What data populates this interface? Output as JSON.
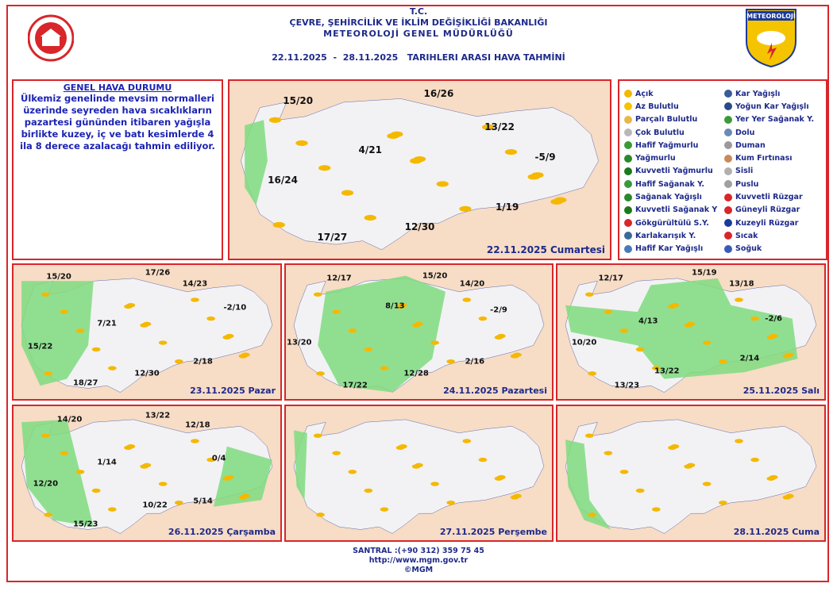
{
  "header": {
    "org": "T.C.",
    "ministry": "ÇEVRE, ŞEHİRCİLİK VE İKLİM DEĞİŞİKLİĞİ BAKANLIĞI",
    "directorate": "METEOROLOJİ GENEL MÜDÜRLÜĞÜ",
    "period": "22.11.2025  -  28.11.2025   TARIHLERI ARASI HAVA TAHMİNİ",
    "logo_right": "METEOROLOJİ"
  },
  "general": {
    "title": "GENEL HAVA DURUMU",
    "text": "Ülkemiz genelinde mevsim normalleri üzerinde seyreden hava sıcaklıkların pazartesi gününden itibaren yağışla birlikte kuzey, iç ve batı kesimlerde 4 ila 8 derece azalacağı tahmin ediliyor."
  },
  "legend": {
    "items": [
      "Açık",
      "Az Bulutlu",
      "Parçalı Bulutlu",
      "Çok Bulutlu",
      "Hafif Yağmurlu",
      "Yağmurlu",
      "Kuvvetli Yağmurlu",
      "Hafif Sağanak Y.",
      "Sağanak Yağışlı",
      "Kuvvetli Sağanak Y",
      "Gökgürültülü S.Y.",
      "Karlakarışık Y.",
      "Hafif Kar Yağışlı",
      "Kar Yağışlı",
      "Yoğun Kar Yağışlı",
      "Yer Yer Sağanak Y.",
      "Dolu",
      "Duman",
      "Kum Fırtınası",
      "Sisli",
      "Puslu",
      "Kuvvetli Rüzgar",
      "Güneyli Rüzgar",
      "Kuzeyli Rüzgar",
      "Sıcak",
      "Soğuk"
    ]
  },
  "maps": [
    {
      "date": "22.11.2025 Cumartesi",
      "temperatures": [
        "15/20",
        "16/26",
        "13/22",
        "4/21",
        "-5/9",
        "16/24",
        "1/19",
        "12/30",
        "17/27"
      ]
    },
    {
      "date": "23.11.2025 Pazar",
      "temperatures": [
        "15/20",
        "17/26",
        "14/23",
        "-2/10",
        "7/21",
        "15/22",
        "2/18",
        "12/30",
        "18/27"
      ]
    },
    {
      "date": "24.11.2025 Pazartesi",
      "temperatures": [
        "12/17",
        "15/20",
        "14/20",
        "8/13",
        "-2/9",
        "13/20",
        "2/16",
        "12/28",
        "17/22"
      ]
    },
    {
      "date": "25.11.2025 Salı",
      "temperatures": [
        "12/17",
        "15/19",
        "13/18",
        "4/13",
        "-2/6",
        "10/20",
        "2/14",
        "13/22",
        "13/23"
      ]
    },
    {
      "date": "26.11.2025 Çarşamba",
      "temperatures": [
        "14/20",
        "13/22",
        "12/18",
        "0/4",
        "1/14",
        "12/20",
        "5/14",
        "10/22",
        "15/23"
      ]
    },
    {
      "date": "27.11.2025 Perşembe",
      "temperatures": []
    },
    {
      "date": "28.11.2025 Cuma",
      "temperatures": []
    }
  ],
  "footer": {
    "phone": "SANTRAL :(+90 312) 359 75 45",
    "url": "http://www.mgm.gov.tr",
    "copyright": "©MGM"
  }
}
